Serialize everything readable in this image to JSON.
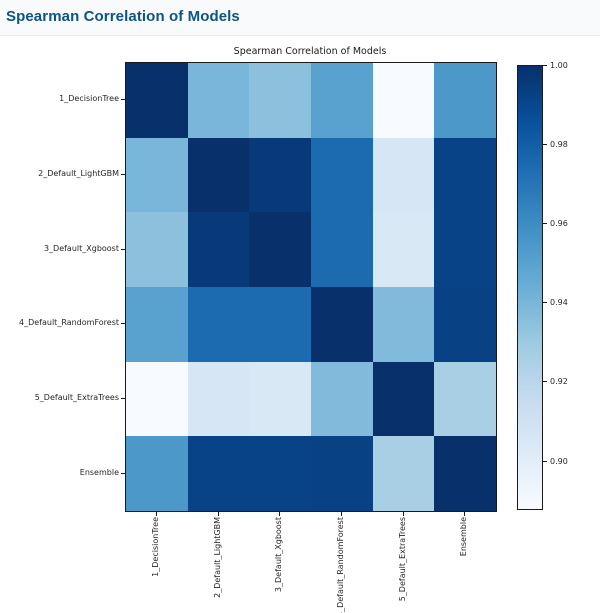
{
  "page": {
    "header_title": "Spearman Correlation of Models"
  },
  "chart_data": {
    "type": "heatmap",
    "title": "Spearman Correlation of Models",
    "labels": [
      "1_DecisionTree",
      "2_Default_LightGBM",
      "3_Default_Xgboost",
      "4_Default_RandomForest",
      "5_Default_ExtraTrees",
      "Ensemble"
    ],
    "matrix": [
      [
        1.0,
        0.94,
        0.935,
        0.95,
        0.888,
        0.955
      ],
      [
        0.94,
        1.0,
        0.996,
        0.975,
        0.906,
        0.992
      ],
      [
        0.935,
        0.996,
        1.0,
        0.975,
        0.905,
        0.992
      ],
      [
        0.95,
        0.975,
        0.975,
        1.0,
        0.938,
        0.993
      ],
      [
        0.888,
        0.906,
        0.905,
        0.938,
        1.0,
        0.926
      ],
      [
        0.955,
        0.992,
        0.992,
        0.993,
        0.926,
        1.0
      ]
    ],
    "vmin": 0.888,
    "vmax": 1.0,
    "colormap": {
      "name": "Blues",
      "stops": [
        [
          0,
          "#f7fbff"
        ],
        [
          0.125,
          "#deebf7"
        ],
        [
          0.25,
          "#c6dbef"
        ],
        [
          0.375,
          "#9ecae1"
        ],
        [
          0.5,
          "#6baed6"
        ],
        [
          0.625,
          "#4292c6"
        ],
        [
          0.75,
          "#2171b5"
        ],
        [
          0.875,
          "#08519c"
        ],
        [
          1,
          "#08306b"
        ]
      ]
    },
    "colorbar_ticks": [
      {
        "label": "1.00",
        "value": 1.0
      },
      {
        "label": "0.98",
        "value": 0.98
      },
      {
        "label": "0.96",
        "value": 0.96
      },
      {
        "label": "0.94",
        "value": 0.94
      },
      {
        "label": "0.92",
        "value": 0.92
      },
      {
        "label": "0.90",
        "value": 0.9
      }
    ],
    "legend_position": "right-colorbar",
    "grid": false
  },
  "theme": {
    "header_text": "#0d5484",
    "header_bg": "#f8fafc",
    "header_border": "#e8ebee",
    "axis_color": "#1a1a1a",
    "tick_label_color": "#262626"
  }
}
